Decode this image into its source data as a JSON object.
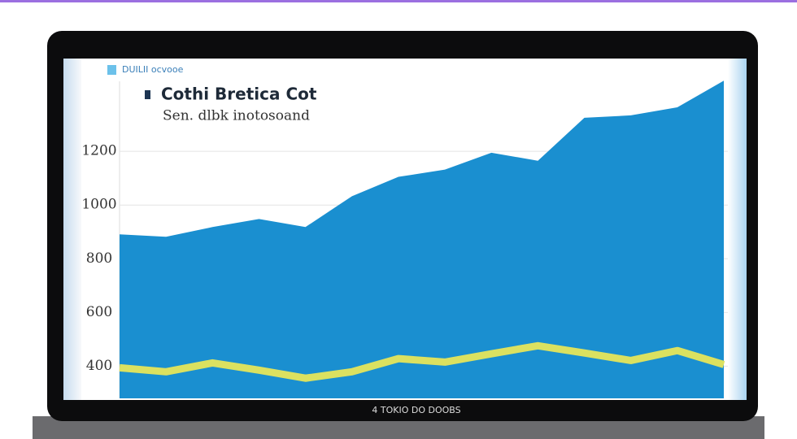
{
  "header": {
    "top_label": "DUILII ocvooe",
    "brand": "4 TOKIO DO DOOBS"
  },
  "chart_data": {
    "type": "area",
    "title": "Cothi Bretica Cot",
    "subtitle": "Sen. dlbk inotosoand",
    "categories": [
      null,
      null,
      null,
      null,
      null,
      null,
      null,
      null,
      null,
      null,
      null,
      null,
      null,
      null
    ],
    "series": [
      {
        "kind": "area",
        "color": "#1a8fd0",
        "values": [
          891,
          882,
          918,
          948,
          918,
          1033,
          1105,
          1132,
          1195,
          1165,
          1325,
          1334,
          1364,
          1463
        ]
      },
      {
        "kind": "line",
        "color": "#e6e65a",
        "values": [
          394,
          379,
          412,
          385,
          355,
          379,
          428,
          415,
          446,
          476,
          449,
          421,
          458,
          406
        ]
      }
    ],
    "ylim": [
      280,
      1470
    ],
    "yticks": [
      400,
      600,
      800,
      1000,
      1200
    ],
    "grid": true
  }
}
